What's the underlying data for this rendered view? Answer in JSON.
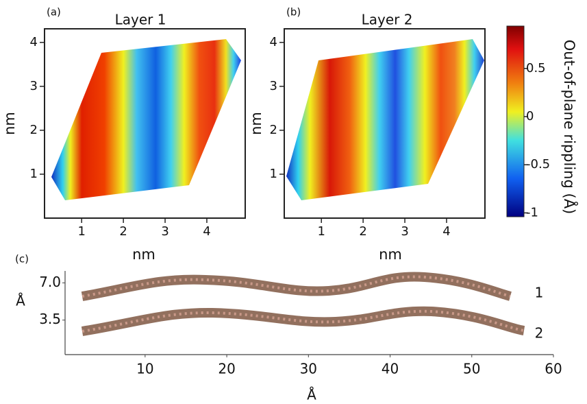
{
  "chart_data": [
    {
      "type": "heatmap",
      "panel_label": "(a)",
      "title": "Layer 1",
      "xlabel": "nm",
      "ylabel": "nm",
      "xlim": [
        0.11,
        4.92
      ],
      "ylim": [
        0,
        4.31
      ],
      "xticks": [
        1,
        2,
        3,
        4
      ],
      "yticks": [
        1,
        2,
        3,
        4
      ]
    },
    {
      "type": "heatmap",
      "panel_label": "(b)",
      "title": "Layer 2",
      "xlabel": "nm",
      "ylabel": "nm",
      "xlim": [
        0.11,
        4.92
      ],
      "ylim": [
        0,
        4.31
      ],
      "xticks": [
        1,
        2,
        3,
        4
      ],
      "yticks": [
        1,
        2,
        3,
        4
      ]
    },
    {
      "type": "colorbar",
      "label": "Out-of-plane rippling (Å)",
      "ylim": [
        -1.04,
        0.94
      ],
      "yticks": [
        -1,
        -0.5,
        0,
        0.5
      ]
    },
    {
      "type": "profile",
      "panel_label": "(c)",
      "xlabel": "Å",
      "ylabel": "Å",
      "xlim": [
        0.2,
        60
      ],
      "ylim": [
        0.25,
        7.8
      ],
      "xticks": [
        10,
        20,
        30,
        40,
        50,
        60
      ],
      "yticks": [
        3.5,
        {
          "value": 7,
          "label": "7.0"
        }
      ],
      "layer_labels": [
        "1",
        "2"
      ]
    }
  ]
}
